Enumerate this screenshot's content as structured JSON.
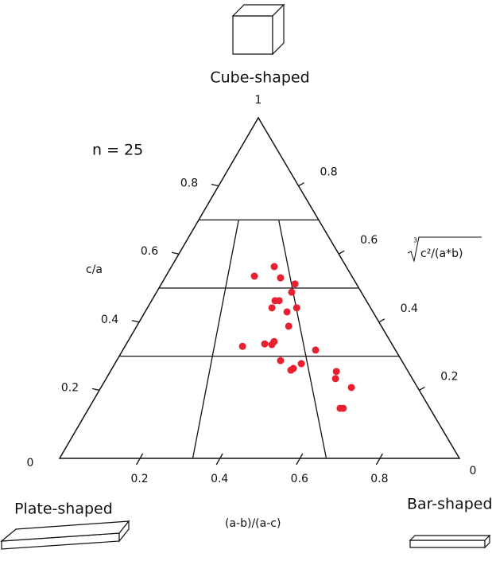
{
  "chart_data": {
    "type": "ternary",
    "title": "Cube-shaped",
    "left_corner_label": "Plate-shaped",
    "right_corner_label": "Bar-shaped",
    "annotation": "n = 25",
    "xlabel": "(a-b)/(a-c)",
    "ylabel": "c/a",
    "y2label": {
      "index": "3",
      "radicand": "c²/(a*b)"
    },
    "color": "#e8202f",
    "xlim": [
      0,
      1
    ],
    "ylim": [
      0,
      1
    ],
    "y2lim": [
      0,
      1
    ],
    "xticks": [
      0.2,
      0.4,
      0.6,
      0.8
    ],
    "yticks": [
      0,
      0.2,
      0.4,
      0.6,
      0.8,
      1
    ],
    "y2ticks": [
      0,
      0.2,
      0.4,
      0.6,
      0.8
    ],
    "ca_lines": [
      0.3,
      0.5,
      0.7
    ],
    "ab_lines": [
      0.333,
      0.667
    ],
    "x": [
      0.476,
      0.588,
      0.615,
      0.685,
      0.66,
      0.575,
      0.594,
      0.558,
      0.623,
      0.669,
      0.621,
      0.438,
      0.521,
      0.557,
      0.548,
      0.707,
      0.575,
      0.646,
      0.616,
      0.607,
      0.759,
      0.749,
      0.791,
      0.737,
      0.746
    ],
    "y": [
      0.535,
      0.563,
      0.53,
      0.512,
      0.488,
      0.463,
      0.463,
      0.442,
      0.43,
      0.442,
      0.388,
      0.329,
      0.336,
      0.343,
      0.334,
      0.318,
      0.287,
      0.278,
      0.264,
      0.259,
      0.255,
      0.234,
      0.208,
      0.147,
      0.147
    ]
  }
}
